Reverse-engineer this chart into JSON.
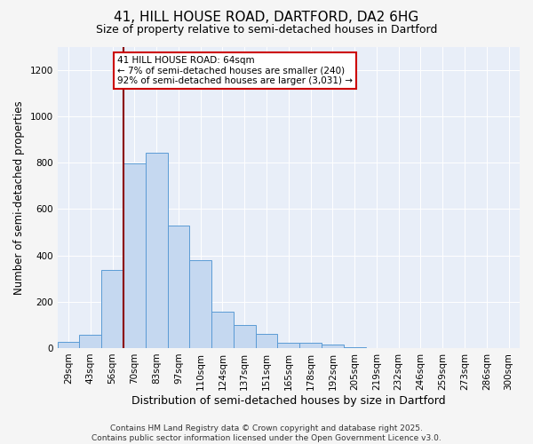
{
  "title1": "41, HILL HOUSE ROAD, DARTFORD, DA2 6HG",
  "title2": "Size of property relative to semi-detached houses in Dartford",
  "xlabel": "Distribution of semi-detached houses by size in Dartford",
  "ylabel": "Number of semi-detached properties",
  "categories": [
    "29sqm",
    "43sqm",
    "56sqm",
    "70sqm",
    "83sqm",
    "97sqm",
    "110sqm",
    "124sqm",
    "137sqm",
    "151sqm",
    "165sqm",
    "178sqm",
    "192sqm",
    "205sqm",
    "219sqm",
    "232sqm",
    "246sqm",
    "259sqm",
    "273sqm",
    "286sqm",
    "300sqm"
  ],
  "values": [
    27,
    57,
    335,
    795,
    843,
    528,
    378,
    155,
    100,
    60,
    22,
    22,
    15,
    5,
    0,
    0,
    0,
    0,
    0,
    0,
    0
  ],
  "bar_color": "#c5d8f0",
  "bar_edge_color": "#5b9bd5",
  "vline_x_index": 2,
  "vline_color": "#8b0000",
  "annotation_text": "41 HILL HOUSE ROAD: 64sqm\n← 7% of semi-detached houses are smaller (240)\n92% of semi-detached houses are larger (3,031) →",
  "annotation_box_color": "#ffffff",
  "annotation_box_edge": "#cc0000",
  "ylim": [
    0,
    1300
  ],
  "yticks": [
    0,
    200,
    400,
    600,
    800,
    1000,
    1200
  ],
  "plot_bg_color": "#e8eef8",
  "fig_bg_color": "#f5f5f5",
  "footer": "Contains HM Land Registry data © Crown copyright and database right 2025.\nContains public sector information licensed under the Open Government Licence v3.0.",
  "title1_fontsize": 11,
  "title2_fontsize": 9,
  "xlabel_fontsize": 9,
  "ylabel_fontsize": 8.5,
  "tick_fontsize": 7.5,
  "footer_fontsize": 6.5,
  "annotation_fontsize": 7.5
}
